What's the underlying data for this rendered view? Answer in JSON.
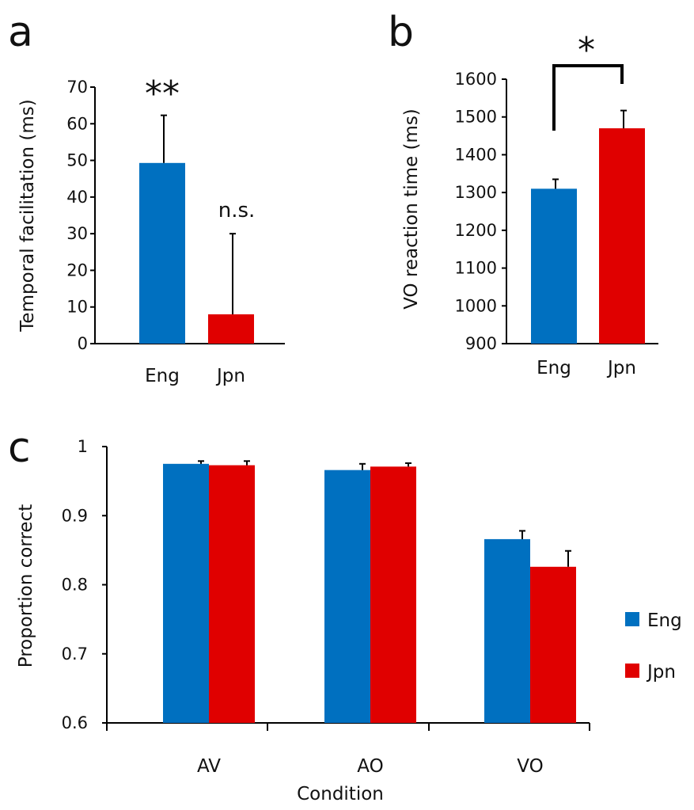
{
  "colors": {
    "Eng": "#0070c0",
    "Jpn": "#e00000"
  },
  "chart_data": [
    {
      "panel": "a",
      "type": "bar",
      "categories": [
        "Eng",
        "Jpn"
      ],
      "values": [
        49.3,
        8
      ],
      "errors": [
        13,
        22
      ],
      "ylabel": "Temporal facilitation (ms)",
      "ylim": [
        0,
        70
      ],
      "yticks": [
        0,
        10,
        20,
        30,
        40,
        50,
        60,
        70
      ],
      "annotations": [
        "**",
        "n.s."
      ]
    },
    {
      "panel": "b",
      "type": "bar",
      "categories": [
        "Eng",
        "Jpn"
      ],
      "values": [
        1310,
        1470
      ],
      "errors": [
        25,
        47
      ],
      "ylabel": "VO reaction time (ms)",
      "ylim": [
        900,
        1600
      ],
      "yticks": [
        900,
        1000,
        1100,
        1200,
        1300,
        1400,
        1500,
        1600
      ],
      "annotations": [
        "*"
      ]
    },
    {
      "panel": "c",
      "type": "bar",
      "categories": [
        "AV",
        "AO",
        "VO"
      ],
      "series": [
        {
          "name": "Eng",
          "values": [
            0.975,
            0.966,
            0.866
          ],
          "errors": [
            0.004,
            0.009,
            0.012
          ]
        },
        {
          "name": "Jpn",
          "values": [
            0.973,
            0.971,
            0.826
          ],
          "errors": [
            0.006,
            0.005,
            0.023
          ]
        }
      ],
      "xlabel": "Condition",
      "ylabel": "Proportion correct",
      "ylim": [
        0.6,
        1
      ],
      "yticks": [
        "0.6",
        "0.7",
        "0.8",
        "0.9",
        "1"
      ],
      "legend": "right"
    }
  ]
}
